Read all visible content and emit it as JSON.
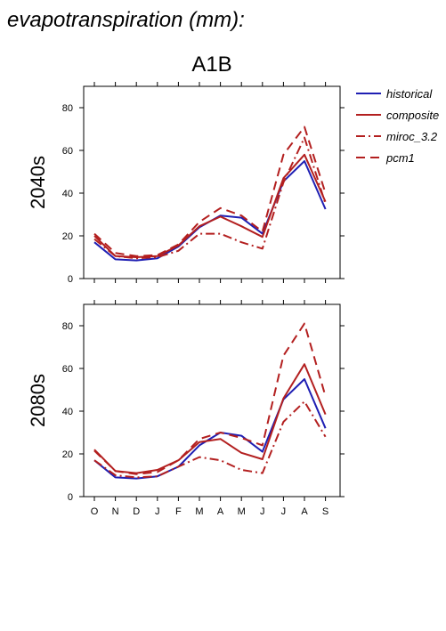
{
  "figure": {
    "title": "evapotranspiration (mm):",
    "scenario": "A1B"
  },
  "legend": {
    "placement": "right",
    "entries": [
      {
        "name": "historical",
        "color": "#1f1fb3",
        "dash": "solid"
      },
      {
        "name": "composite",
        "color": "#b31f1f",
        "dash": "solid"
      },
      {
        "name": "miroc_3.2",
        "color": "#b31f1f",
        "dash": "dashdot"
      },
      {
        "name": "pcm1",
        "color": "#b31f1f",
        "dash": "dashed"
      }
    ]
  },
  "chart_data": [
    {
      "type": "line",
      "title": "2040s",
      "categories": [
        "O",
        "N",
        "D",
        "J",
        "F",
        "M",
        "A",
        "M",
        "J",
        "J",
        "A",
        "S"
      ],
      "ylim": [
        0,
        90
      ],
      "yticks": [
        0,
        20,
        40,
        60,
        80
      ],
      "show_xtick_labels": false,
      "series": [
        {
          "name": "historical",
          "values": [
            17,
            9,
            8.5,
            9.5,
            15,
            24,
            29.5,
            28.5,
            21,
            45.5,
            55,
            32.5
          ]
        },
        {
          "name": "composite",
          "values": [
            20,
            10.5,
            10,
            10.5,
            15.5,
            24.5,
            29,
            24.5,
            19.5,
            47,
            58,
            36
          ]
        },
        {
          "name": "miroc_3.2",
          "values": [
            18.5,
            10.5,
            9.5,
            10,
            13,
            21,
            21,
            17,
            14,
            45,
            66,
            35
          ]
        },
        {
          "name": "pcm1",
          "values": [
            21,
            12,
            10.5,
            11,
            16,
            26.5,
            33,
            29.5,
            22,
            58,
            71,
            40
          ]
        }
      ]
    },
    {
      "type": "line",
      "title": "2080s",
      "categories": [
        "O",
        "N",
        "D",
        "J",
        "F",
        "M",
        "A",
        "M",
        "J",
        "J",
        "A",
        "S"
      ],
      "ylim": [
        0,
        90
      ],
      "yticks": [
        0,
        20,
        40,
        60,
        80
      ],
      "show_xtick_labels": true,
      "series": [
        {
          "name": "historical",
          "values": [
            17,
            9,
            8.5,
            9.5,
            14,
            24,
            30,
            28.5,
            21,
            45.5,
            55,
            32
          ]
        },
        {
          "name": "composite",
          "values": [
            22,
            12,
            11,
            12.5,
            17,
            25.5,
            27,
            20.5,
            17.5,
            46,
            62,
            38.5
          ]
        },
        {
          "name": "miroc_3.2",
          "values": [
            17,
            10,
            9,
            9.5,
            14,
            18.5,
            17,
            12.5,
            11,
            35,
            44.5,
            28
          ]
        },
        {
          "name": "pcm1",
          "values": [
            21.5,
            12,
            10.5,
            11.5,
            17,
            27,
            30,
            27.5,
            24,
            66,
            81,
            47
          ]
        }
      ]
    }
  ]
}
